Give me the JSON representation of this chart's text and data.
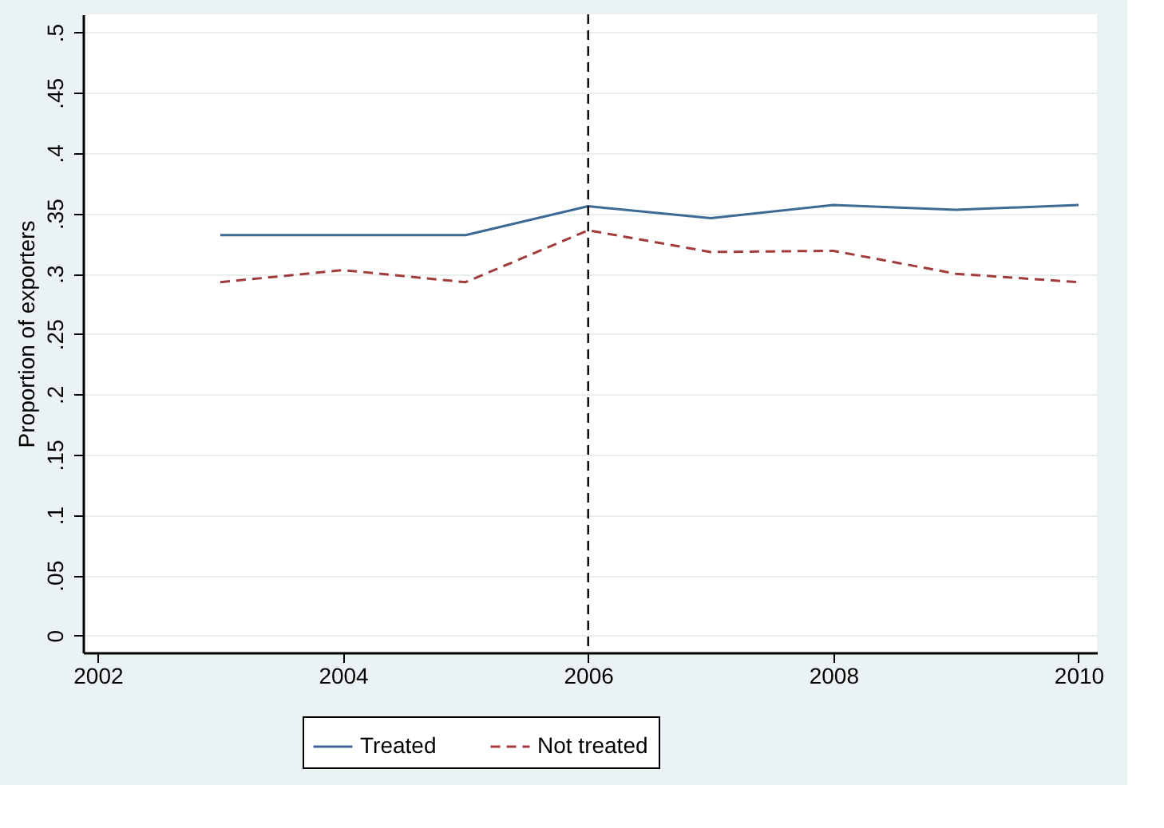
{
  "chart_data": {
    "type": "line",
    "ylabel": "Proportion of exporters",
    "x": [
      2003,
      2004,
      2005,
      2006,
      2007,
      2008,
      2009,
      2010
    ],
    "series": [
      {
        "name": "Treated",
        "color": "#3d6a94",
        "line_style": "solid",
        "values": [
          0.332,
          0.332,
          0.332,
          0.356,
          0.346,
          0.357,
          0.353,
          0.357
        ]
      },
      {
        "name": "Not treated",
        "color": "#a23b3b",
        "line_style": "dashed",
        "values": [
          0.293,
          0.303,
          0.293,
          0.336,
          0.318,
          0.319,
          0.3,
          0.293
        ]
      }
    ],
    "xlim": [
      2001.88,
      2010.15
    ],
    "xticks": [
      2002,
      2004,
      2006,
      2008,
      2010
    ],
    "ylim": [
      -0.014,
      0.515
    ],
    "yticks": [
      0,
      {
        "value": 0.05,
        "label": ".05"
      },
      {
        "value": 0.1,
        "label": ".1"
      },
      {
        "value": 0.15,
        "label": ".15"
      },
      {
        "value": 0.2,
        "label": ".2"
      },
      {
        "value": 0.25,
        "label": ".25"
      },
      {
        "value": 0.3,
        "label": ".3"
      },
      {
        "value": 0.35,
        "label": ".35"
      },
      {
        "value": 0.4,
        "label": ".4"
      },
      {
        "value": 0.45,
        "label": ".45"
      },
      {
        "value": 0.5,
        "label": ".5"
      }
    ],
    "ref_lines": [
      {
        "axis": "x",
        "value": 2006,
        "label": null,
        "color": "#000000",
        "line_style": "dashed"
      }
    ],
    "grid": "y",
    "legend": "bottom",
    "marker": "none"
  }
}
